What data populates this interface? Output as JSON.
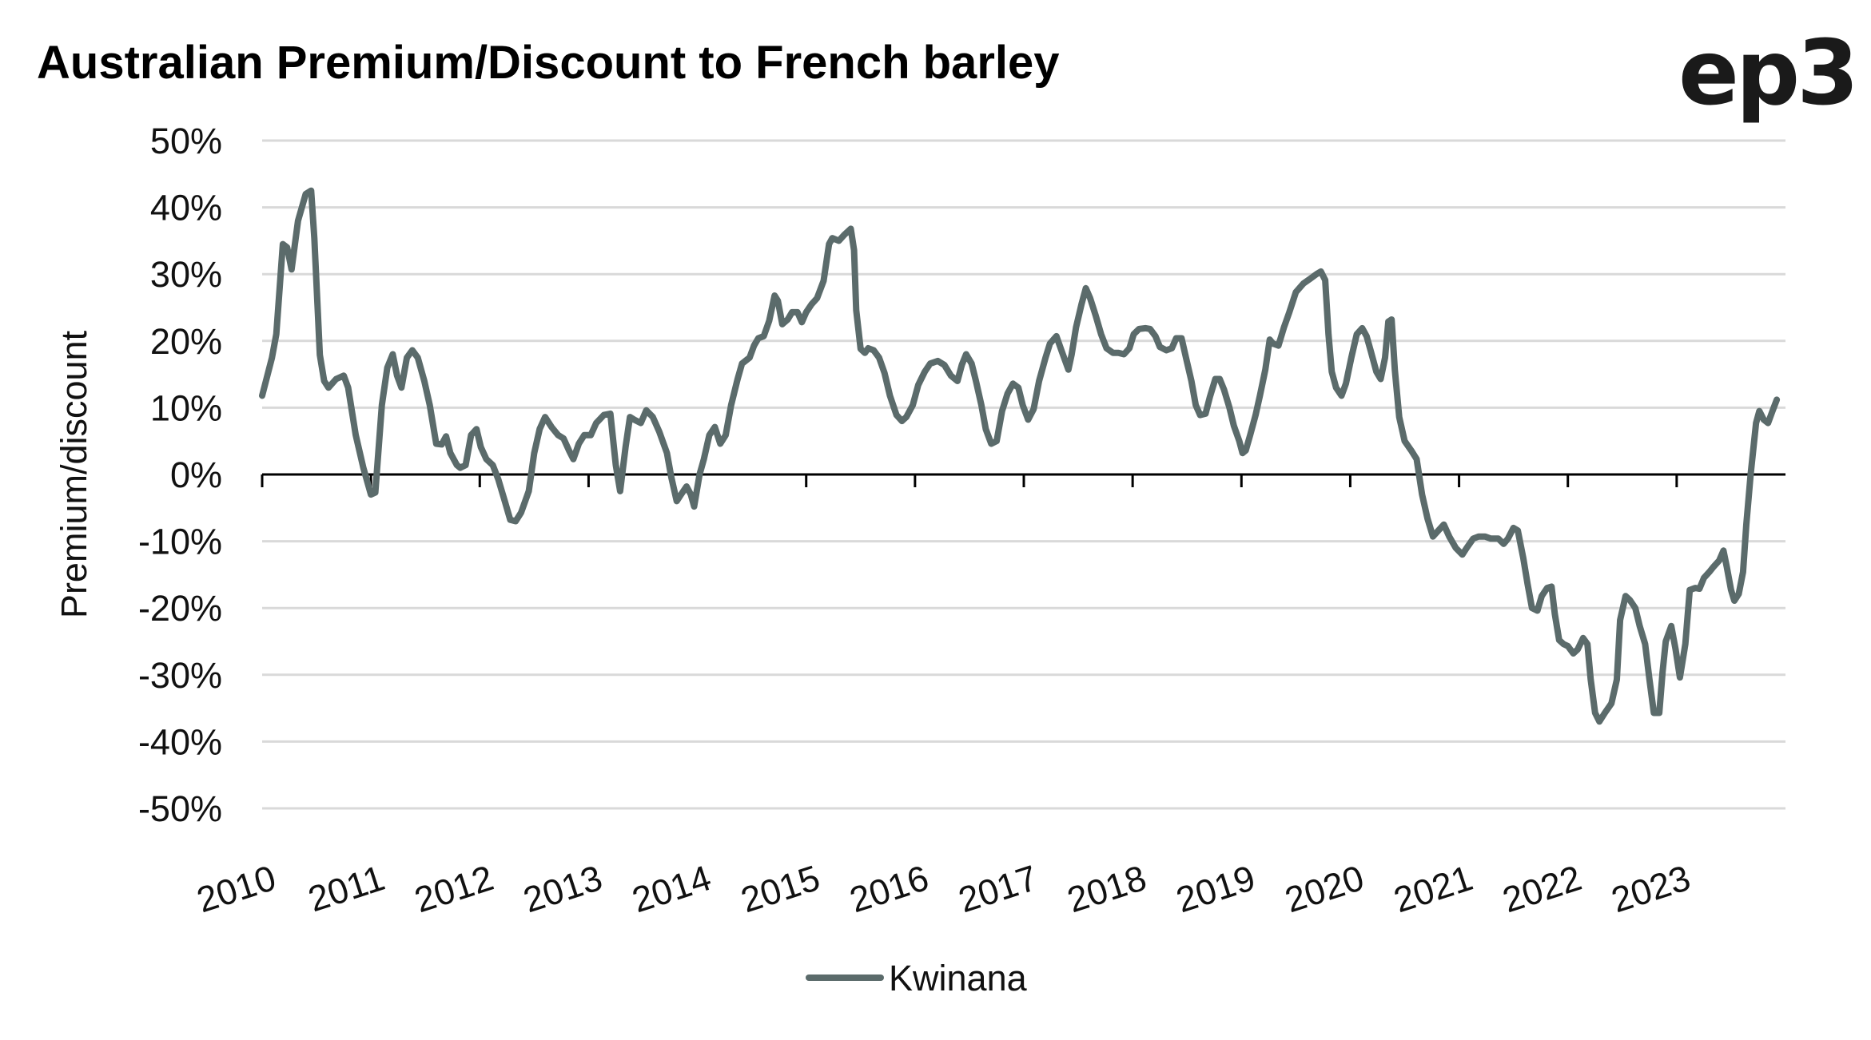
{
  "chart_data": {
    "type": "line",
    "title": "Australian Premium/Discount to French barley",
    "logo": "ep3",
    "xlabel": "",
    "ylabel": "Premium/discount",
    "ylim": [
      -50,
      50
    ],
    "xlim": [
      2010,
      2024
    ],
    "y_ticks": [
      "50%",
      "40%",
      "30%",
      "20%",
      "10%",
      "0%",
      "-10%",
      "-20%",
      "-30%",
      "-40%",
      "-50%"
    ],
    "y_tick_values": [
      50,
      40,
      30,
      20,
      10,
      0,
      -10,
      -20,
      -30,
      -40,
      -50
    ],
    "x_ticks": [
      "2010",
      "2011",
      "2012",
      "2013",
      "2014",
      "2015",
      "2016",
      "2017",
      "2018",
      "2019",
      "2020",
      "2021",
      "2022",
      "2023"
    ],
    "grid": true,
    "legend_position": "bottom",
    "colors": {
      "line": "#5b6b6b",
      "grid": "#d9d9d9",
      "axis": "#000000"
    },
    "series": [
      {
        "name": "Kwinana",
        "x": [
          2010.0,
          2010.09,
          2010.13,
          2010.19,
          2010.23,
          2010.27,
          2010.33,
          2010.4,
          2010.45,
          2010.48,
          2010.53,
          2010.57,
          2010.61,
          2010.68,
          2010.75,
          2010.79,
          2010.86,
          2010.93,
          2011.0,
          2011.04,
          2011.1,
          2011.15,
          2011.2,
          2011.24,
          2011.28,
          2011.33,
          2011.38,
          2011.43,
          2011.49,
          2011.54,
          2011.6,
          2011.65,
          2011.69,
          2011.73,
          2011.79,
          2011.82,
          2011.87,
          2011.92,
          2011.97,
          2012.01,
          2012.06,
          2012.12,
          2012.17,
          2012.23,
          2012.28,
          2012.33,
          2012.38,
          2012.45,
          2012.5,
          2012.55,
          2012.6,
          2012.66,
          2012.72,
          2012.77,
          2012.82,
          2012.86,
          2012.91,
          2012.96,
          2013.02,
          2013.07,
          2013.14,
          2013.2,
          2013.25,
          2013.29,
          2013.34,
          2013.38,
          2013.42,
          2013.48,
          2013.53,
          2013.59,
          2013.65,
          2013.72,
          2013.76,
          2013.81,
          2013.85,
          2013.9,
          2013.94,
          2013.97,
          2014.02,
          2014.06,
          2014.11,
          2014.16,
          2014.21,
          2014.26,
          2014.31,
          2014.37,
          2014.41,
          2014.48,
          2014.52,
          2014.56,
          2014.61,
          2014.66,
          2014.71,
          2014.74,
          2014.78,
          2014.83,
          2014.87,
          2014.92,
          2014.96,
          2015.0,
          2015.05,
          2015.1,
          2015.16,
          2015.21,
          2015.24,
          2015.3,
          2015.35,
          2015.41,
          2015.44,
          2015.46,
          2015.5,
          2015.54,
          2015.57,
          2015.62,
          2015.67,
          2015.72,
          2015.77,
          2015.83,
          2015.88,
          2015.92,
          2015.98,
          2016.03,
          2016.09,
          2016.14,
          2016.21,
          2016.27,
          2016.33,
          2016.39,
          2016.43,
          2016.47,
          2016.52,
          2016.56,
          2016.61,
          2016.65,
          2016.7,
          2016.75,
          2016.8,
          2016.85,
          2016.9,
          2016.95,
          2016.99,
          2017.04,
          2017.09,
          2017.14,
          2017.2,
          2017.24,
          2017.3,
          2017.35,
          2017.41,
          2017.44,
          2017.48,
          2017.53,
          2017.57,
          2017.61,
          2017.66,
          2017.71,
          2017.76,
          2017.82,
          2017.87,
          2017.92,
          2017.97,
          2018.01,
          2018.06,
          2018.12,
          2018.16,
          2018.21,
          2018.25,
          2018.31,
          2018.36,
          2018.4,
          2018.45,
          2018.49,
          2018.54,
          2018.58,
          2018.62,
          2018.67,
          2018.71,
          2018.76,
          2018.8,
          2018.84,
          2018.89,
          2018.93,
          2018.98,
          2019.01,
          2019.04,
          2019.08,
          2019.13,
          2019.17,
          2019.22,
          2019.26,
          2019.29,
          2019.34,
          2019.39,
          2019.44,
          2019.5,
          2019.57,
          2019.63,
          2019.69,
          2019.73,
          2019.77,
          2019.8,
          2019.83,
          2019.87,
          2019.92,
          2019.96,
          2020.01,
          2020.06,
          2020.11,
          2020.15,
          2020.19,
          2020.24,
          2020.28,
          2020.32,
          2020.35,
          2020.38,
          2020.41,
          2020.45,
          2020.5,
          2020.56,
          2020.61,
          2020.66,
          2020.71,
          2020.76,
          2020.81,
          2020.86,
          2020.91,
          2020.97,
          2021.03,
          2021.07,
          2021.13,
          2021.18,
          2021.24,
          2021.29,
          2021.36,
          2021.41,
          2021.45,
          2021.5,
          2021.54,
          2021.59,
          2021.63,
          2021.67,
          2021.72,
          2021.76,
          2021.81,
          2021.85,
          2021.88,
          2021.92,
          2021.96,
          2022.0,
          2022.05,
          2022.09,
          2022.14,
          2022.18,
          2022.21,
          2022.25,
          2022.29,
          2022.34,
          2022.4,
          2022.45,
          2022.48,
          2022.53,
          2022.57,
          2022.62,
          2022.66,
          2022.71,
          2022.75,
          2022.79,
          2022.84,
          2022.87,
          2022.9,
          2022.95,
          2022.99,
          2023.03,
          2023.08,
          2023.12,
          2023.17,
          2023.21,
          2023.25,
          2023.3,
          2023.34,
          2023.39,
          2023.43,
          2023.46,
          2023.5,
          2023.53,
          2023.57,
          2023.61,
          2023.64,
          2023.68,
          2023.73,
          2023.76,
          2023.8,
          2023.84,
          2023.88,
          2023.92
        ],
        "values": [
          11.8,
          17.5,
          21,
          34.5,
          34,
          30.7,
          38,
          42,
          42.5,
          35.4,
          17.9,
          14,
          13,
          14.3,
          14.8,
          13,
          5.9,
          1,
          -3,
          -2.7,
          10.4,
          16,
          18,
          14.8,
          13,
          17.5,
          18.6,
          17.5,
          14,
          10.4,
          4.6,
          4.5,
          5.7,
          3.2,
          1.4,
          1,
          1.4,
          5.9,
          6.8,
          4.1,
          2.3,
          1.4,
          -0.7,
          -4,
          -6.8,
          -7,
          -5.7,
          -2.5,
          3.2,
          6.8,
          8.6,
          7.1,
          5.9,
          5.4,
          3.6,
          2.3,
          4.6,
          5.9,
          5.9,
          7.7,
          8.9,
          9.1,
          1.4,
          -2.5,
          4.1,
          8.6,
          8.2,
          7.7,
          9.6,
          8.6,
          6.4,
          3.2,
          -0.4,
          -4,
          -3,
          -1.8,
          -3,
          -4.8,
          0,
          2.3,
          5.9,
          7.1,
          4.6,
          5.9,
          10.4,
          14.3,
          16.6,
          17.5,
          19.3,
          20.4,
          20.7,
          23,
          26.8,
          26,
          22.5,
          23.2,
          24.3,
          24.3,
          22.8,
          24.3,
          25.5,
          26.4,
          29,
          34.5,
          35.4,
          35,
          35.9,
          36.8,
          33.6,
          24.6,
          18.8,
          18.2,
          18.9,
          18.6,
          17.5,
          15.2,
          11.8,
          8.9,
          8,
          8.6,
          10.4,
          13.4,
          15.4,
          16.6,
          17,
          16.4,
          14.8,
          14,
          16.4,
          18,
          16.6,
          14,
          10.4,
          6.8,
          4.6,
          5,
          9.5,
          12.1,
          13.6,
          13,
          10.4,
          8.2,
          9.8,
          14,
          17.5,
          19.6,
          20.7,
          18.4,
          15.7,
          18,
          22,
          25.5,
          27.9,
          26.4,
          23.8,
          21,
          18.9,
          18.2,
          18.2,
          18,
          18.9,
          21,
          21.8,
          21.9,
          21.8,
          20.7,
          19.1,
          18.6,
          18.9,
          20.4,
          20.4,
          17.5,
          14,
          10.4,
          8.9,
          9.1,
          11.6,
          14.3,
          14.3,
          12.7,
          10,
          7.3,
          5,
          3.2,
          3.6,
          5.9,
          8.9,
          11.8,
          15.7,
          20.2,
          19.6,
          19.3,
          22,
          24.3,
          27.3,
          28.6,
          29.3,
          30,
          30.4,
          29.1,
          21,
          15.4,
          13,
          11.8,
          13.6,
          17.5,
          21,
          21.9,
          20.7,
          18.4,
          15.4,
          14.3,
          17.5,
          22.9,
          23.2,
          15.7,
          8.6,
          5,
          3.6,
          2.3,
          -3,
          -6.6,
          -9.3,
          -8.4,
          -7.5,
          -9.3,
          -11,
          -12,
          -11,
          -9.6,
          -9.3,
          -9.3,
          -9.6,
          -9.6,
          -10.4,
          -9.6,
          -8,
          -8.4,
          -12.5,
          -16.4,
          -20,
          -20.4,
          -18.2,
          -17,
          -16.8,
          -20.9,
          -24.8,
          -25.4,
          -25.7,
          -26.8,
          -26.2,
          -24.5,
          -25.4,
          -30.7,
          -35.7,
          -37,
          -35.7,
          -34.3,
          -30.7,
          -21.8,
          -18.2,
          -18.8,
          -20,
          -22.7,
          -25.4,
          -30.7,
          -35.7,
          -35.7,
          -29.6,
          -25,
          -22.7,
          -26.2,
          -30.4,
          -25.4,
          -17.3,
          -17,
          -17.1,
          -15.5,
          -14.6,
          -13.8,
          -12.9,
          -11.4,
          -13.8,
          -17.3,
          -18.9,
          -17.9,
          -14.6,
          -7.5,
          0,
          7.7,
          9.5,
          8.2,
          7.7,
          9.5,
          11.2
        ]
      }
    ]
  }
}
